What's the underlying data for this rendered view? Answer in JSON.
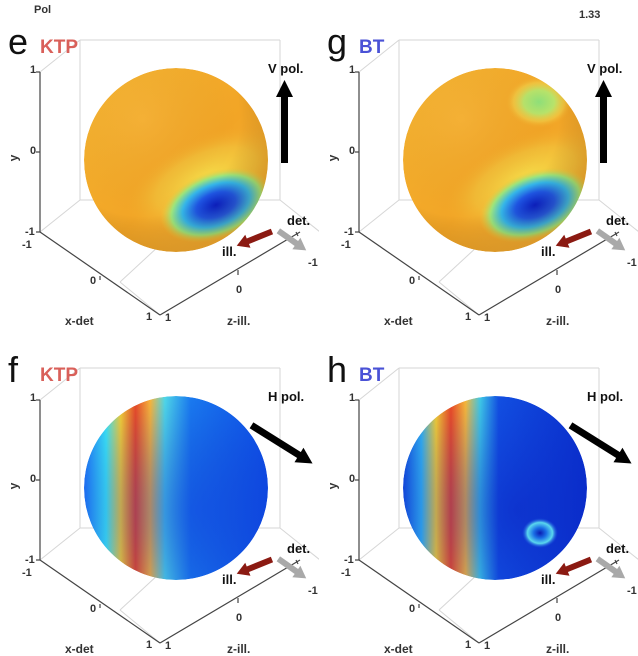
{
  "header": {
    "left_label": "Pol",
    "right_label": "1.33"
  },
  "colors": {
    "ktp": "#d9605a",
    "bt": "#4a52d6",
    "ill_arrow": "#8b1a12",
    "det_arrow": "#a9a9a9",
    "pol_arrow": "#000000"
  },
  "panels": [
    {
      "id": "e",
      "letter": "e",
      "material": "KTP",
      "material_color": "#d9605a",
      "pol_label": "V pol.",
      "pol_dir": "vertical",
      "scheme": "warm-blue-spot",
      "ticks": {
        "y_top": "1",
        "y_mid": "0",
        "y_bot": "-1",
        "x_left": "-1",
        "x_mid": "0",
        "x_right": "1",
        "z_left": "1",
        "z_mid": "0",
        "z_right": "-1"
      },
      "axes": {
        "y": "y",
        "x": "x-det",
        "z": "z-ill."
      },
      "ill_label": "ill.",
      "det_label": "det."
    },
    {
      "id": "g",
      "letter": "g",
      "material": "BT",
      "material_color": "#4a52d6",
      "pol_label": "V pol.",
      "pol_dir": "vertical",
      "scheme": "warm-green-top",
      "ticks": {
        "y_top": "1",
        "y_mid": "0",
        "y_bot": "-1",
        "x_left": "-1",
        "x_mid": "0",
        "x_right": "1",
        "z_left": "1",
        "z_mid": "0",
        "z_right": "-1"
      },
      "axes": {
        "y": "y",
        "x": "x-det",
        "z": "z-ill."
      },
      "ill_label": "ill.",
      "det_label": "det."
    },
    {
      "id": "f",
      "letter": "f",
      "material": "KTP",
      "material_color": "#d9605a",
      "pol_label": "H pol.",
      "pol_dir": "horizontal",
      "scheme": "blue-band",
      "ticks": {
        "y_top": "1",
        "y_mid": "0",
        "y_bot": "-1",
        "x_left": "-1",
        "x_mid": "0",
        "x_right": "1",
        "z_left": "1",
        "z_mid": "0",
        "z_right": "-1"
      },
      "axes": {
        "y": "y",
        "x": "x-det",
        "z": "z-ill."
      },
      "ill_label": "ill.",
      "det_label": "det."
    },
    {
      "id": "h",
      "letter": "h",
      "material": "BT",
      "material_color": "#4a52d6",
      "pol_label": "H pol.",
      "pol_dir": "horizontal",
      "scheme": "deep-blue-band",
      "ticks": {
        "y_top": "1",
        "y_mid": "0",
        "y_bot": "-1",
        "x_left": "-1",
        "x_mid": "0",
        "x_right": "1",
        "z_left": "1",
        "z_mid": "0",
        "z_right": "-1"
      },
      "axes": {
        "y": "y",
        "x": "x-det",
        "z": "z-ill."
      },
      "ill_label": "ill.",
      "det_label": "det."
    }
  ]
}
